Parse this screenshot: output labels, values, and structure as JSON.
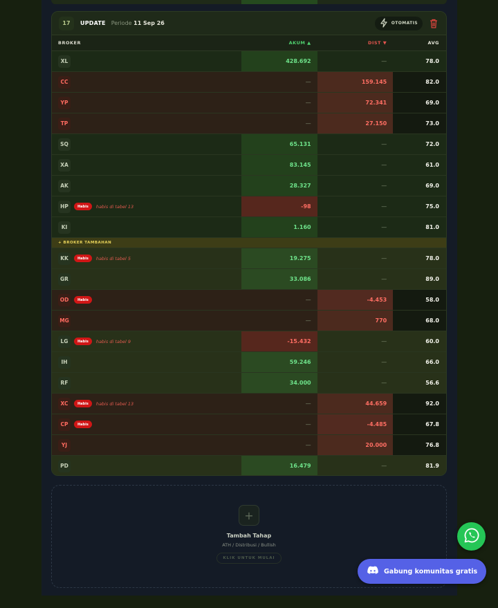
{
  "stage": {
    "number": "17",
    "title": "UPDATE",
    "periode_label": "Periode",
    "periode_date": "11 Sep 26",
    "auto_label": "OTOMATIS"
  },
  "table": {
    "headers": {
      "broker": "BROKER",
      "akum": "AKUM ▲",
      "dist": "DIST ▼",
      "avg": "AVG"
    },
    "rows": [
      {
        "code": "XL",
        "kind": "g",
        "badge": "",
        "note": "",
        "akum": "428.692",
        "dist": "—",
        "avg": "78.0"
      },
      {
        "code": "CC",
        "kind": "r",
        "badge": "",
        "note": "",
        "akum": "—",
        "dist": "159.145",
        "avg": "82.0"
      },
      {
        "code": "YP",
        "kind": "r",
        "badge": "",
        "note": "",
        "akum": "—",
        "dist": "72.341",
        "avg": "69.0"
      },
      {
        "code": "TP",
        "kind": "r",
        "badge": "",
        "note": "",
        "akum": "—",
        "dist": "27.150",
        "avg": "73.0"
      },
      {
        "code": "SQ",
        "kind": "g",
        "badge": "",
        "note": "",
        "akum": "65.131",
        "dist": "—",
        "avg": "72.0"
      },
      {
        "code": "XA",
        "kind": "g",
        "badge": "",
        "note": "",
        "akum": "83.145",
        "dist": "—",
        "avg": "61.0"
      },
      {
        "code": "AK",
        "kind": "g",
        "badge": "",
        "note": "",
        "akum": "28.327",
        "dist": "—",
        "avg": "69.0"
      },
      {
        "code": "HP",
        "kind": "g",
        "badge": "Habis",
        "note": "habis di tabel 13",
        "akum": "-98",
        "dist": "—",
        "avg": "75.0"
      },
      {
        "code": "KI",
        "kind": "g",
        "badge": "",
        "note": "",
        "akum": "1.160",
        "dist": "—",
        "avg": "81.0"
      }
    ],
    "separator_label": "+ BROKER TAMBAHAN",
    "extra_rows": [
      {
        "code": "KK",
        "kind": "g",
        "badge": "Habis",
        "note": "habis di tabel 5",
        "akum": "19.275",
        "dist": "—",
        "avg": "78.0"
      },
      {
        "code": "GR",
        "kind": "g",
        "badge": "",
        "note": "",
        "akum": "33.086",
        "dist": "—",
        "avg": "89.0"
      },
      {
        "code": "OD",
        "kind": "r",
        "badge": "Habis",
        "note": "",
        "akum": "—",
        "dist": "-4.453",
        "avg": "58.0"
      },
      {
        "code": "MG",
        "kind": "r",
        "badge": "",
        "note": "",
        "akum": "—",
        "dist": "770",
        "avg": "68.0"
      },
      {
        "code": "LG",
        "kind": "g",
        "badge": "Habis",
        "note": "habis di tabel 9",
        "akum": "-15.432",
        "dist": "—",
        "avg": "60.0"
      },
      {
        "code": "IH",
        "kind": "g",
        "badge": "",
        "note": "",
        "akum": "59.246",
        "dist": "—",
        "avg": "66.0"
      },
      {
        "code": "RF",
        "kind": "g",
        "badge": "",
        "note": "",
        "akum": "34.000",
        "dist": "—",
        "avg": "56.6"
      },
      {
        "code": "XC",
        "kind": "r",
        "badge": "Habis",
        "note": "habis di tabel 13",
        "akum": "—",
        "dist": "44.659",
        "avg": "92.0"
      },
      {
        "code": "CP",
        "kind": "r",
        "badge": "Habis",
        "note": "",
        "akum": "—",
        "dist": "-4.485",
        "avg": "67.8"
      },
      {
        "code": "YJ",
        "kind": "r",
        "badge": "",
        "note": "",
        "akum": "—",
        "dist": "20.000",
        "avg": "76.8"
      },
      {
        "code": "PD",
        "kind": "g",
        "badge": "",
        "note": "",
        "akum": "16.479",
        "dist": "—",
        "avg": "81.9"
      }
    ]
  },
  "add_stage": {
    "plus": "+",
    "title": "Tambah Tahap",
    "subtitle": "ATH / Distribusi / Bullish",
    "cta": "KLIK UNTUK MULAI"
  },
  "floating": {
    "discord_label": "Gabung komunitas gratis",
    "whatsapp_icon": "whatsapp-icon",
    "discord_icon": "discord-icon"
  },
  "colors": {
    "accent_green": "#4fcf6e",
    "accent_red": "#e2544e",
    "habis_badge": "#d01616",
    "whatsapp": "#25c656",
    "discord": "#5561e6"
  }
}
